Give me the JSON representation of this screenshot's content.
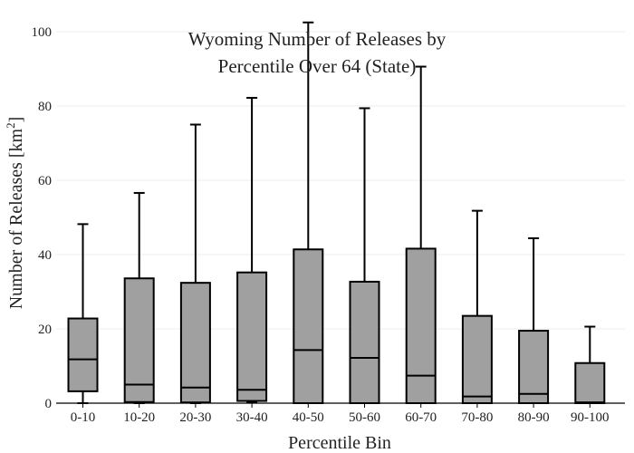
{
  "chart_data": {
    "type": "box",
    "title_lines": [
      "Wyoming Number of Releases by",
      "Percentile Over 64 (State)"
    ],
    "xlabel": "Percentile Bin",
    "ylabel_main": "Number of Releases  [km",
    "ylabel_sup": "2",
    "ylabel_end": "]",
    "ylim": [
      0,
      100
    ],
    "yticks": [
      0,
      20,
      40,
      60,
      80,
      100
    ],
    "grid": true,
    "box_color": "#a0a0a0",
    "line_color": "#000000",
    "categories": [
      "0-10",
      "10-20",
      "20-30",
      "30-40",
      "40-50",
      "50-60",
      "60-70",
      "70-80",
      "80-90",
      "90-100"
    ],
    "boxes": [
      {
        "low": 0,
        "q1": 3.2,
        "median": 11.8,
        "q3": 22.8,
        "high": 48.2
      },
      {
        "low": 0,
        "q1": 0.3,
        "median": 5.0,
        "q3": 33.6,
        "high": 56.6
      },
      {
        "low": 0,
        "q1": 0.2,
        "median": 4.2,
        "q3": 32.4,
        "high": 75.0
      },
      {
        "low": 0.2,
        "q1": 0.6,
        "median": 3.6,
        "q3": 35.2,
        "high": 82.2
      },
      {
        "low": 0,
        "q1": 0,
        "median": 14.3,
        "q3": 41.4,
        "high": 102.5
      },
      {
        "low": 0,
        "q1": 0,
        "median": 12.2,
        "q3": 32.7,
        "high": 79.4
      },
      {
        "low": 0,
        "q1": 0,
        "median": 7.4,
        "q3": 41.6,
        "high": 90.6
      },
      {
        "low": 0,
        "q1": 0,
        "median": 1.8,
        "q3": 23.5,
        "high": 51.8
      },
      {
        "low": 0,
        "q1": 0,
        "median": 2.5,
        "q3": 19.5,
        "high": 44.4
      },
      {
        "low": 0,
        "q1": 0,
        "median": 0.2,
        "q3": 10.8,
        "high": 20.6
      }
    ]
  }
}
